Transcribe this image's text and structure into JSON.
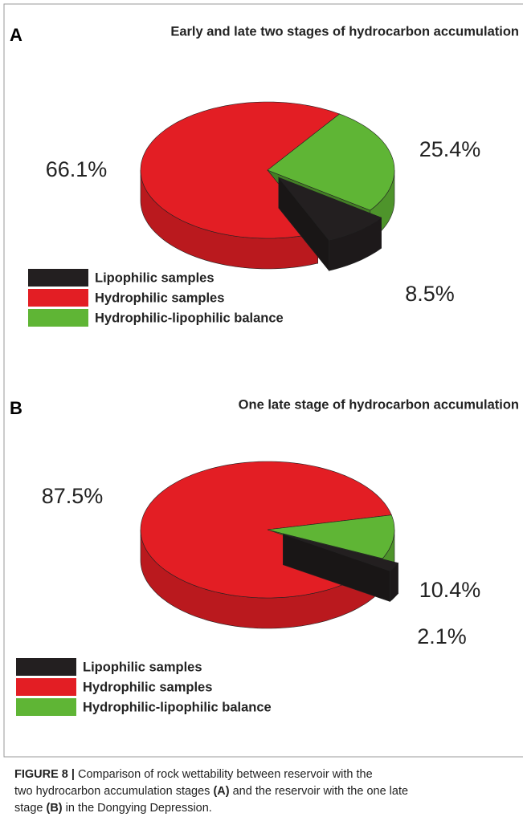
{
  "chart_data": [
    {
      "type": "pie3d",
      "panel_label": "A",
      "title": "Early and late two stages of hydrocarbon accumulation",
      "categories": [
        "Lipophilic samples",
        "Hydrophilic samples",
        "Hydrophilic-lipophilic balance"
      ],
      "values": [
        8.5,
        66.1,
        25.4
      ],
      "value_labels": [
        "8.5%",
        "66.1%",
        "25.4%"
      ],
      "colors": [
        "#231f20",
        "#e31e24",
        "#5fb535"
      ]
    },
    {
      "type": "pie3d",
      "panel_label": "B",
      "title": "One late stage of hydrocarbon accumulation",
      "categories": [
        "Lipophilic samples",
        "Hydrophilic samples",
        "Hydrophilic-lipophilic balance"
      ],
      "values": [
        2.1,
        87.5,
        10.4
      ],
      "value_labels": [
        "2.1%",
        "87.5%",
        "10.4%"
      ],
      "colors": [
        "#231f20",
        "#e31e24",
        "#5fb535"
      ]
    }
  ],
  "caption": [
    [
      {
        "text": "FIGURE 8 |",
        "bold": true
      },
      {
        "text": " Comparison of rock wettability between reservoir with the",
        "bold": false
      }
    ],
    [
      {
        "text": "two hydrocarbon accumulation stages ",
        "bold": false
      },
      {
        "text": "(A)",
        "bold": true
      },
      {
        "text": " and the reservoir with the one late",
        "bold": false
      }
    ],
    [
      {
        "text": "stage ",
        "bold": false
      },
      {
        "text": "(B)",
        "bold": true
      },
      {
        "text": " in the Dongying Depression.",
        "bold": false
      }
    ]
  ]
}
